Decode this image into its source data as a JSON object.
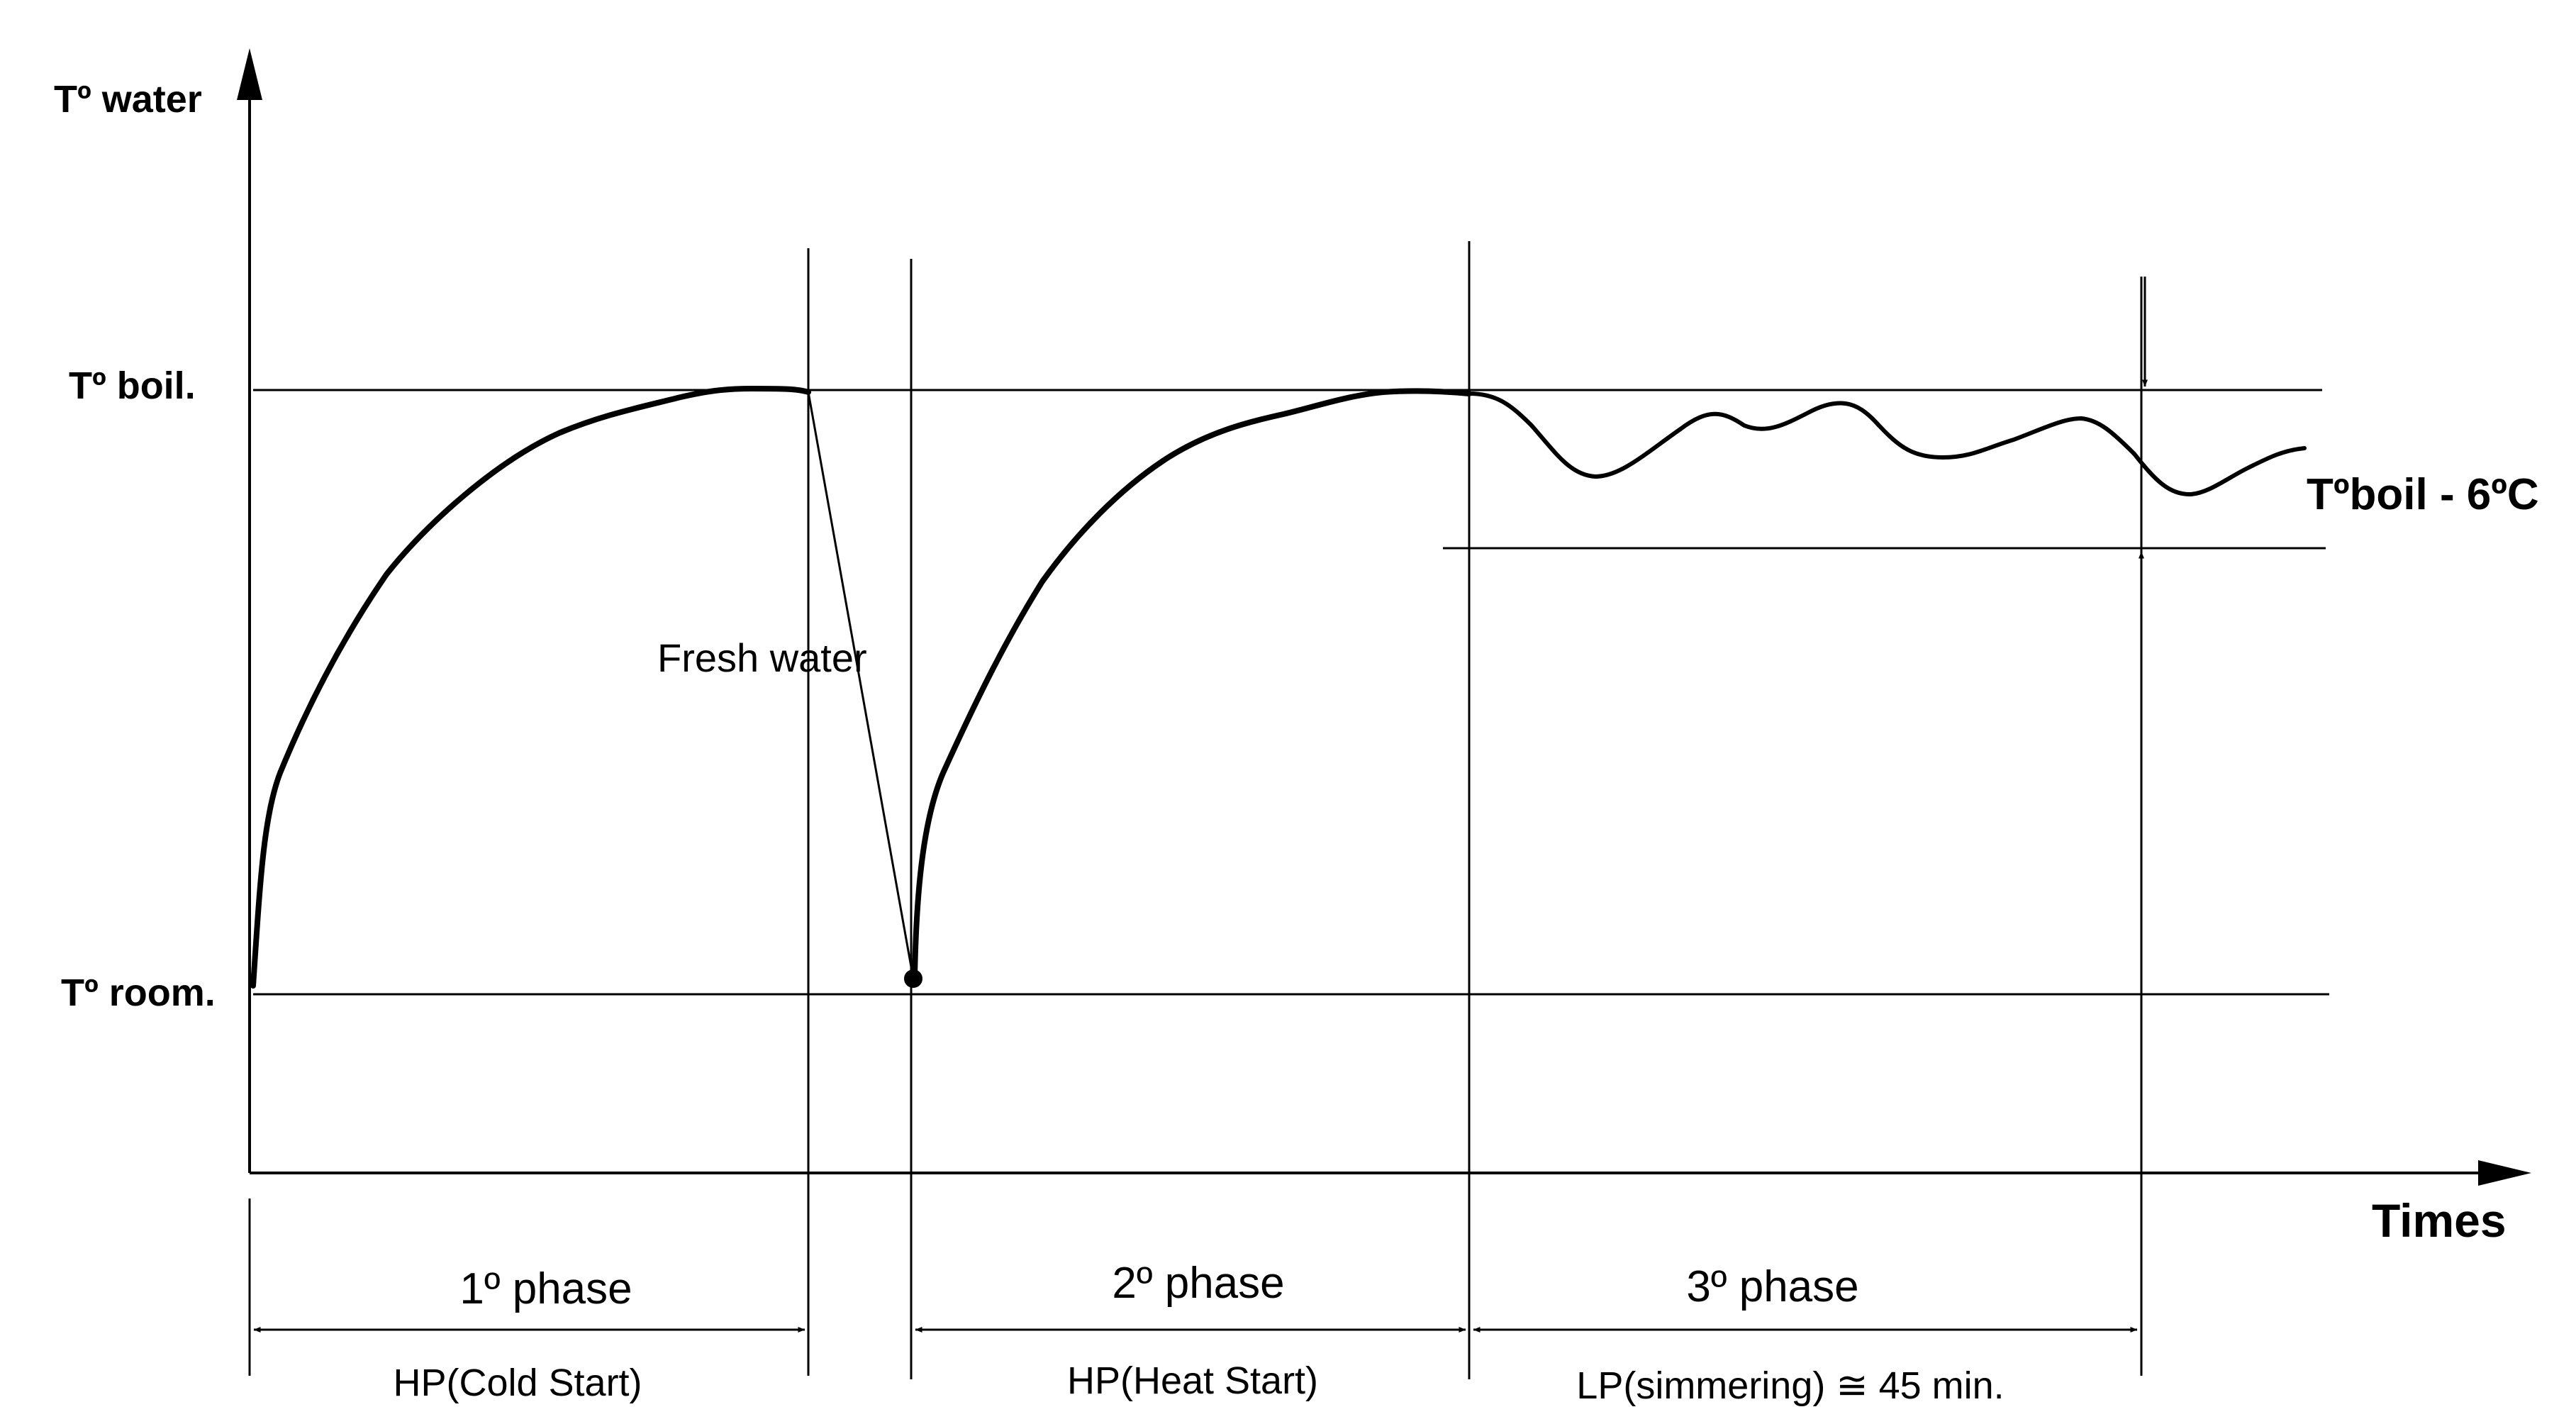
{
  "axes": {
    "y_title": "Tº water",
    "x_title": "Times"
  },
  "levels": {
    "boil": "Tº boil.",
    "room": "Tº room."
  },
  "annotations": {
    "fresh_water": "Fresh water",
    "band": "Tºboil - 6ºC"
  },
  "phases": [
    {
      "title": "1º phase",
      "desc": "HP(Cold Start)"
    },
    {
      "title": "2º phase",
      "desc": "HP(Heat Start)"
    },
    {
      "title": "3º phase",
      "desc": "LP(simmering) ≅ 45 min."
    }
  ]
}
